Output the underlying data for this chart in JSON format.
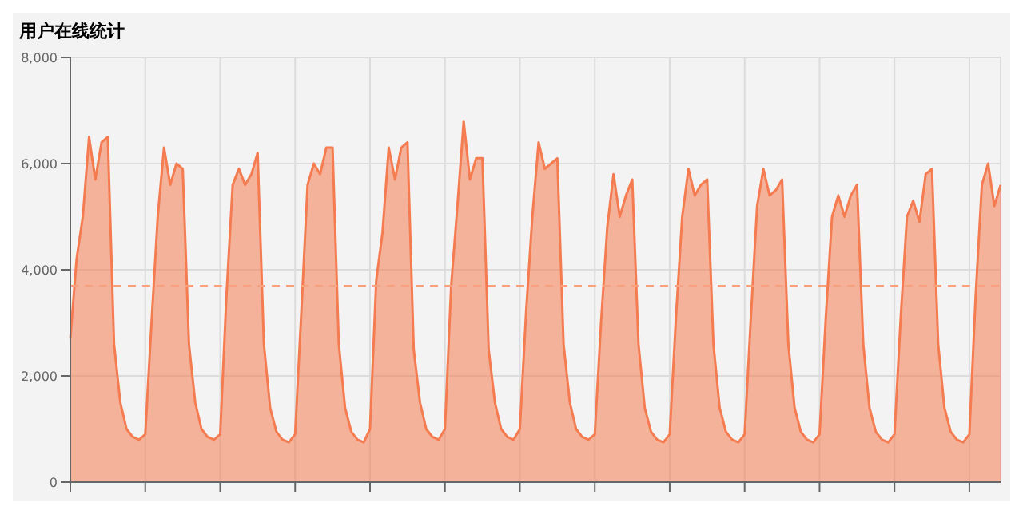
{
  "chart_data": {
    "type": "area",
    "title": "用户在线统计",
    "categories": [
      null,
      null,
      null,
      null,
      null,
      null,
      null,
      null,
      null,
      null,
      null,
      null,
      null,
      null,
      null,
      null,
      null,
      null,
      null,
      null,
      null,
      null,
      null,
      null,
      null,
      null,
      null,
      null,
      null,
      null,
      null,
      null,
      null,
      null,
      null,
      null,
      null,
      null,
      null,
      null,
      null,
      null,
      null,
      null,
      null,
      null,
      null,
      null,
      null,
      null,
      null,
      null,
      null,
      null,
      null,
      null,
      null,
      null,
      null,
      null,
      null,
      null,
      null,
      null,
      null,
      null,
      null,
      null,
      null,
      null,
      null,
      null,
      null,
      null,
      null,
      null,
      null,
      null,
      null,
      null,
      null,
      null,
      null,
      null,
      null,
      null,
      null,
      null,
      null,
      null,
      null,
      null,
      null,
      null,
      null,
      null,
      null,
      null,
      null,
      null,
      null,
      null,
      null,
      null,
      null,
      null,
      null,
      null,
      null,
      null,
      null,
      null,
      null,
      null,
      null,
      null,
      null,
      null,
      null,
      null,
      null,
      null,
      null,
      null,
      null,
      null,
      null,
      null,
      null,
      null,
      null,
      null,
      null,
      null,
      null,
      null,
      null,
      null,
      null,
      null,
      null,
      null,
      null,
      null,
      null,
      null,
      null,
      null,
      null,
      null
    ],
    "series": [
      {
        "color": "#f47c50",
        "values": [
          2700,
          4200,
          5000,
          6500,
          5700,
          6400,
          6500,
          2600,
          1500,
          1000,
          850,
          800,
          900,
          3000,
          5000,
          6300,
          5600,
          6000,
          5900,
          2600,
          1500,
          1000,
          850,
          800,
          900,
          3500,
          5600,
          5900,
          5600,
          5800,
          6200,
          2600,
          1400,
          950,
          800,
          750,
          900,
          3200,
          5600,
          6000,
          5800,
          6300,
          6300,
          2600,
          1400,
          950,
          800,
          750,
          1000,
          3800,
          4700,
          6300,
          5700,
          6300,
          6400,
          2500,
          1500,
          1000,
          850,
          800,
          1000,
          3700,
          5200,
          6800,
          5700,
          6100,
          6100,
          2500,
          1500,
          1000,
          850,
          800,
          1000,
          3200,
          5000,
          6400,
          5900,
          6000,
          6100,
          2600,
          1500,
          1000,
          850,
          800,
          900,
          3000,
          4800,
          5800,
          5000,
          5400,
          5700,
          2600,
          1400,
          950,
          800,
          750,
          900,
          3100,
          5000,
          5900,
          5400,
          5600,
          5700,
          2600,
          1400,
          950,
          800,
          750,
          900,
          3100,
          5200,
          5900,
          5400,
          5500,
          5700,
          2600,
          1400,
          950,
          800,
          750,
          900,
          3100,
          5000,
          5400,
          5000,
          5400,
          5600,
          2600,
          1400,
          950,
          800,
          750,
          900,
          3100,
          5000,
          5300,
          4900,
          5800,
          5900,
          2600,
          1400,
          950,
          800,
          750,
          900,
          3500,
          5600,
          6000,
          5200,
          5600
        ]
      }
    ],
    "ylim": [
      0,
      8000
    ],
    "yticks": [
      {
        "value": 0,
        "label": "0"
      },
      {
        "value": 2000,
        "label": "2,000"
      },
      {
        "value": 4000,
        "label": "4,000"
      },
      {
        "value": 6000,
        "label": "6,000"
      },
      {
        "value": 8000,
        "label": "8,000"
      }
    ],
    "grid": true,
    "ref_lines": [
      {
        "axis": "y",
        "value": 3700,
        "color": "#f9a07c",
        "line_style": "dashed"
      }
    ]
  }
}
